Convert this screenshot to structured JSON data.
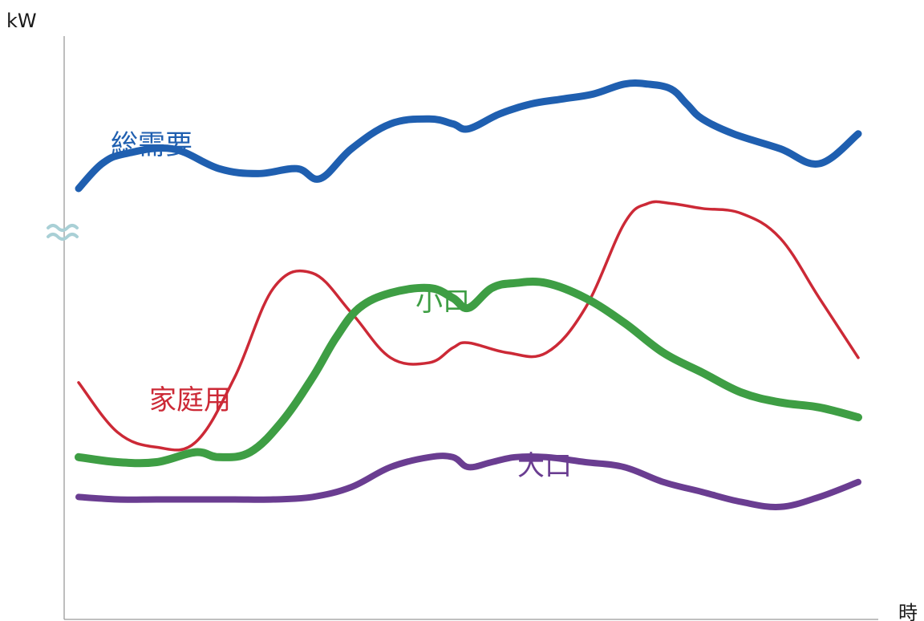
{
  "chart_data": {
    "type": "line",
    "ylabel": "kW",
    "xlabel": "時",
    "y_axis_break": true,
    "grid": false,
    "legend": "inline-labels",
    "xlim": [
      0,
      100
    ],
    "ylim": [
      0,
      100
    ],
    "series": [
      {
        "name": "総需要",
        "color": "#1f5fb0",
        "x": [
          0,
          3,
          6,
          12,
          18,
          23,
          28,
          31,
          35,
          40,
          45,
          48,
          50,
          54,
          58,
          62,
          66,
          70,
          73,
          76,
          78,
          80,
          84,
          90,
          95,
          100
        ],
        "values": [
          75,
          80,
          82,
          83,
          79,
          78,
          79,
          77,
          83,
          88,
          89,
          88,
          87,
          90,
          92,
          93,
          94,
          96,
          96,
          95,
          92,
          89,
          86,
          83,
          80,
          86
        ]
      },
      {
        "name": "家庭用",
        "color": "#cc2936",
        "x": [
          0,
          5,
          10,
          15,
          20,
          25,
          30,
          35,
          40,
          45,
          48,
          50,
          55,
          60,
          65,
          70,
          73,
          76,
          80,
          85,
          90,
          95,
          100
        ],
        "values": [
          36,
          26,
          23,
          24,
          37,
          55,
          58,
          50,
          41,
          40,
          43,
          44,
          42,
          42,
          51,
          68,
          72,
          72,
          71,
          70,
          65,
          53,
          41
        ]
      },
      {
        "name": "小口",
        "color": "#3e9e44",
        "x": [
          0,
          5,
          10,
          15,
          18,
          22,
          26,
          30,
          33,
          36,
          40,
          45,
          48,
          50,
          53,
          56,
          60,
          65,
          70,
          75,
          80,
          85,
          90,
          95,
          100
        ],
        "values": [
          21,
          20,
          20,
          22,
          21,
          22,
          28,
          37,
          45,
          51,
          54,
          55,
          53,
          51,
          55,
          56,
          56,
          53,
          48,
          42,
          38,
          34,
          32,
          31,
          29
        ]
      },
      {
        "name": "大口",
        "color": "#6a3d91",
        "x": [
          0,
          5,
          10,
          15,
          20,
          25,
          30,
          35,
          40,
          45,
          48,
          50,
          53,
          56,
          60,
          65,
          70,
          75,
          80,
          85,
          90,
          95,
          100
        ],
        "values": [
          13,
          12.5,
          12.5,
          12.5,
          12.5,
          12.5,
          13,
          15,
          19,
          21,
          21,
          19,
          20,
          21,
          21,
          20,
          19,
          16,
          14,
          12,
          11,
          13,
          16
        ]
      }
    ]
  }
}
